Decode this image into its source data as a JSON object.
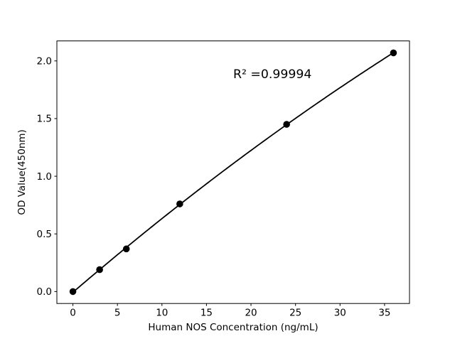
{
  "chart_data": {
    "type": "line",
    "title": "",
    "xlabel": "Human NOS Concentration (ng/mL)",
    "ylabel": "OD Value(450nm)",
    "x": [
      0,
      3,
      6,
      12,
      24,
      36
    ],
    "y": [
      0.0,
      0.19,
      0.37,
      0.76,
      1.45,
      2.07
    ],
    "xlim": [
      -1.8,
      37.8
    ],
    "ylim": [
      -0.1035,
      2.1735
    ],
    "xticks": [
      0,
      5,
      10,
      15,
      20,
      25,
      30,
      35
    ],
    "xtick_labels": [
      "0",
      "5",
      "10",
      "15",
      "20",
      "25",
      "30",
      "35"
    ],
    "yticks": [
      0.0,
      0.5,
      1.0,
      1.5,
      2.0
    ],
    "ytick_labels": [
      "0.0",
      "0.5",
      "1.0",
      "1.5",
      "2.0"
    ],
    "annotation": {
      "text": "R² =0.99994",
      "x": 18.0,
      "y": 1.85
    },
    "fit": "quadratic",
    "grid": false,
    "legend": null,
    "marker": "circle",
    "colors": {
      "line": "#000000",
      "marker": "#000000",
      "axis": "#000000",
      "background": "#ffffff"
    }
  }
}
